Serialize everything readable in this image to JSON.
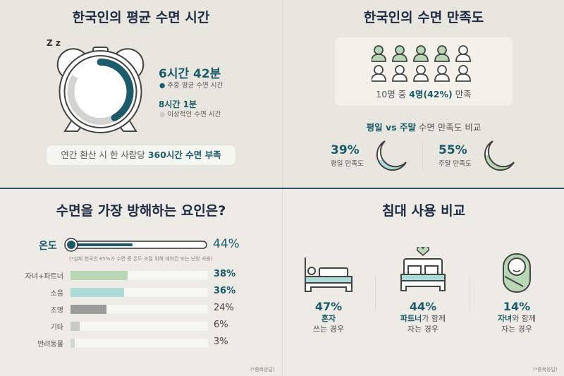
{
  "sleep_time": {
    "title": "한국인의 평균 수면 시간",
    "zz": "Z z",
    "actual": "6시간 42분",
    "actual_label": "주중 평균 수면 시간",
    "ideal": "8시간 1분",
    "ideal_label": "이상적인 수면 시간",
    "actual_fraction": 0.42,
    "summary_pre": "연간 환산 시 한 사람당 ",
    "summary_bold": "360시간 수면 부족"
  },
  "satisfaction": {
    "title": "한국인의 수면 만족도",
    "satisfied_count": 4,
    "total": 10,
    "summary_pre": "10명 중 ",
    "summary_bold": "4명(42%)",
    "summary_post": " 만족",
    "compare_a": "평일",
    "compare_vs": " vs ",
    "compare_b": "주말",
    "compare_post": " 수면 만족도 비교",
    "weekday_pct": "39%",
    "weekday_label": "평일 만족도",
    "weekend_pct": "55%",
    "weekend_label": "주말 만족도",
    "weekday_value": 39,
    "weekend_value": 55
  },
  "factors": {
    "title": "수면을 가장 방해하는 요인은?",
    "temp_label": "온도",
    "temp_pct": "44%",
    "temp_value": 44,
    "temp_note": "(*실제 한국인 85%가 수면 중 온도 조절 위해 에어컨 또는 난방 사용)",
    "items": [
      {
        "label": "자녀+파트너",
        "pct": "38%",
        "value": 38,
        "color": "#b9d6b5"
      },
      {
        "label": "소음",
        "pct": "36%",
        "value": 36,
        "color": "#acdad6"
      },
      {
        "label": "조명",
        "pct": "24%",
        "value": 24,
        "color": "#9b9b9b"
      },
      {
        "label": "기타",
        "pct": "6%",
        "value": 6,
        "color": "#c9c9c6"
      },
      {
        "label": "반려동물",
        "pct": "3%",
        "value": 3,
        "color": "#d6d6d3"
      }
    ],
    "footnote": "(*중복응답)"
  },
  "bed": {
    "title": "침대 사용 비교",
    "items": [
      {
        "pct": "47%",
        "bold": "혼자",
        "rest": "",
        "line2": "쓰는 경우"
      },
      {
        "pct": "44%",
        "bold": "파트너",
        "rest": "가 함께",
        "line2": "자는 경우"
      },
      {
        "pct": "14%",
        "bold": "자녀",
        "rest": "와 함께",
        "line2": "자는 경우"
      }
    ],
    "footnote": "(*중복응답)"
  },
  "colors": {
    "teal": "#1d5a6a",
    "navy": "#1f2a44",
    "green": "#b9d6b5",
    "mint": "#acdad6"
  }
}
